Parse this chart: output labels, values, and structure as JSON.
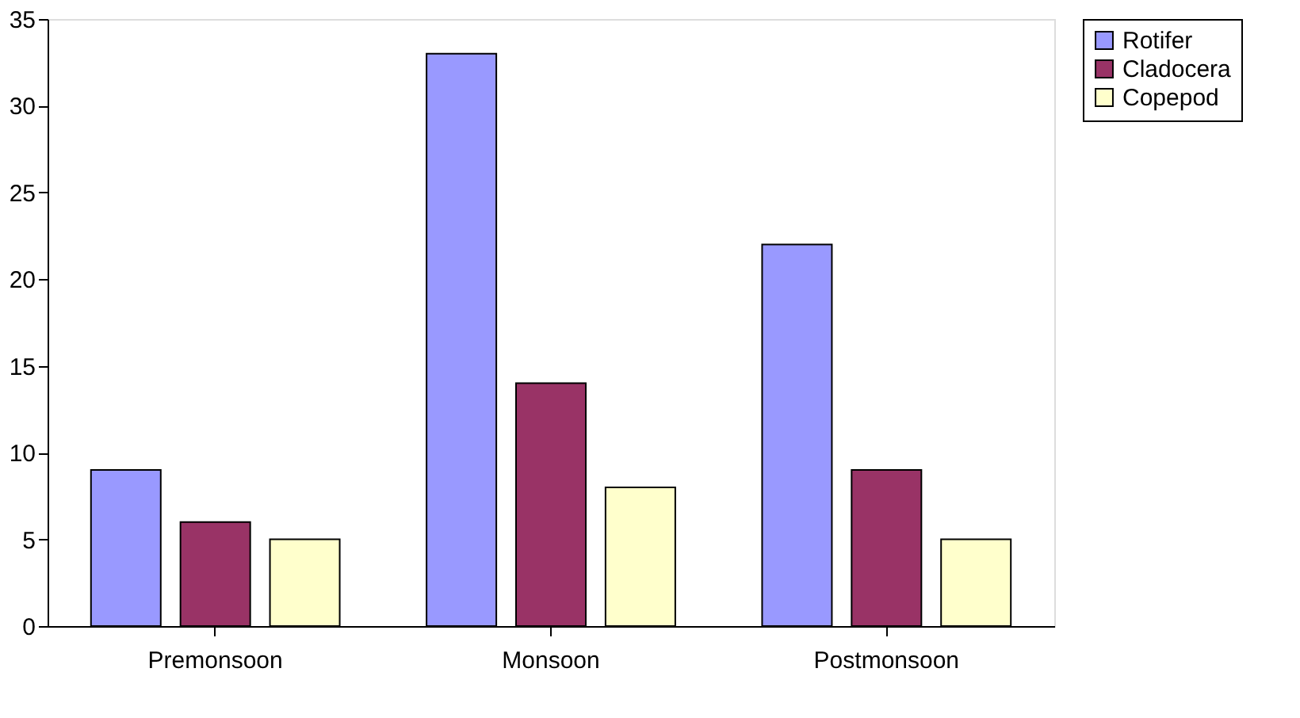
{
  "chart_data": {
    "type": "bar",
    "categories": [
      "Premonsoon",
      "Monsoon",
      "Postmonsoon"
    ],
    "series": [
      {
        "name": "Rotifer",
        "color": "#9999ff",
        "values": [
          9,
          33,
          22
        ]
      },
      {
        "name": "Cladocera",
        "color": "#993366",
        "values": [
          6,
          14,
          9
        ]
      },
      {
        "name": "Copepod",
        "color": "#ffffcc",
        "values": [
          5,
          8,
          5
        ]
      }
    ],
    "ylim": [
      0,
      35
    ],
    "yticks": [
      0,
      5,
      10,
      15,
      20,
      25,
      30,
      35
    ],
    "grid": false,
    "legend": "right"
  }
}
